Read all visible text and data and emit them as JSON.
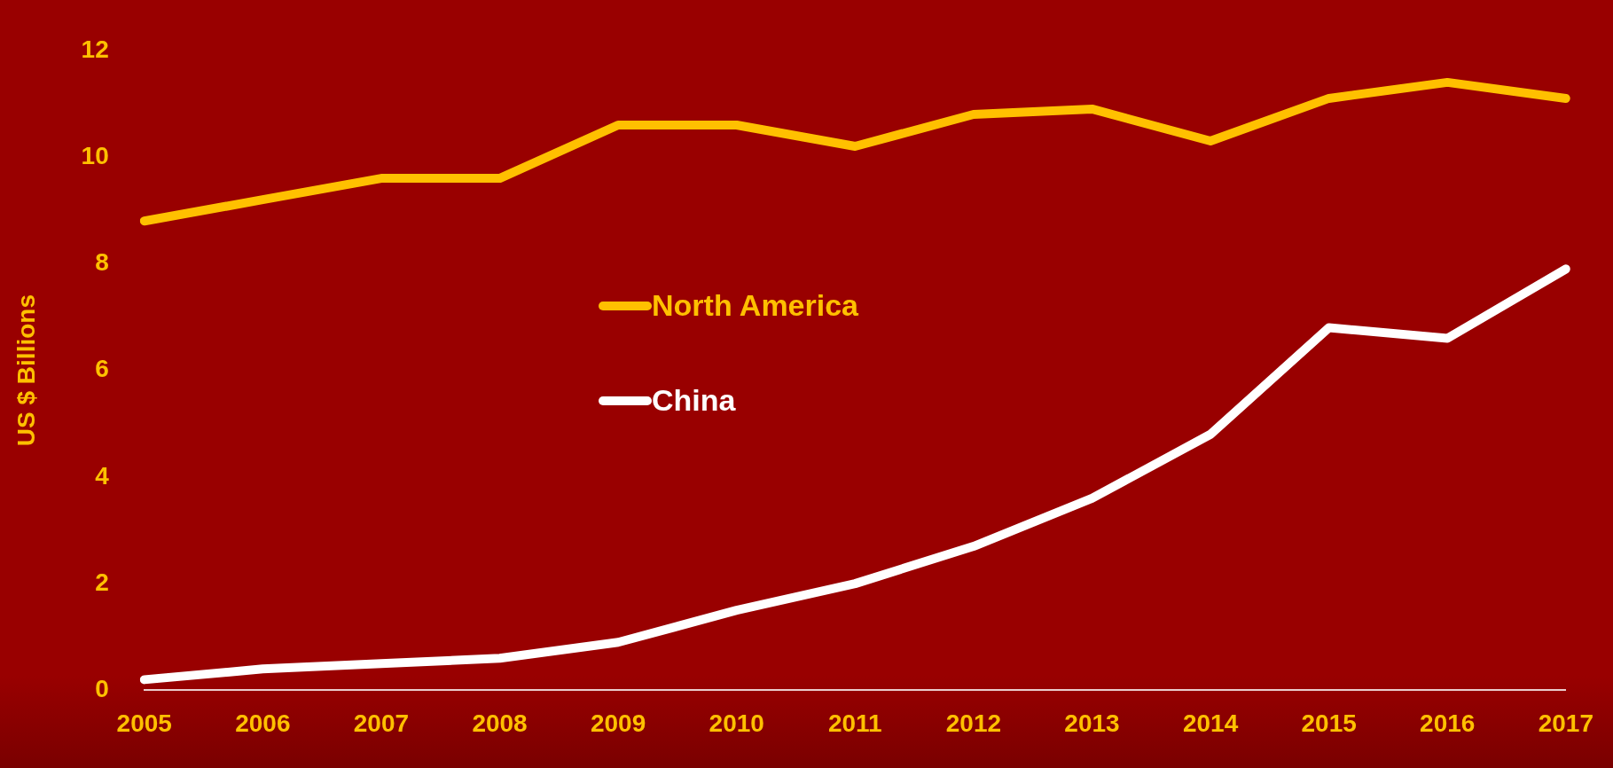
{
  "chart_data": {
    "type": "line",
    "ylabel": "US $ Billions",
    "categories": [
      "2005",
      "2006",
      "2007",
      "2008",
      "2009",
      "2010",
      "2011",
      "2012",
      "2013",
      "2014",
      "2015",
      "2016",
      "2017"
    ],
    "series": [
      {
        "name": "North America",
        "color": "#ffc000",
        "values": [
          8.8,
          9.2,
          9.6,
          9.6,
          10.6,
          10.6,
          10.2,
          10.8,
          10.9,
          10.3,
          11.1,
          11.4,
          11.1
        ]
      },
      {
        "name": "China",
        "color": "#ffffff",
        "values": [
          0.2,
          0.4,
          0.5,
          0.6,
          0.9,
          1.5,
          2.0,
          2.7,
          3.6,
          4.8,
          6.8,
          6.6,
          7.9
        ]
      }
    ],
    "ylim": [
      0,
      12
    ],
    "yticks": [
      0,
      2,
      4,
      6,
      8,
      10,
      12
    ],
    "grid": false,
    "legend": "center",
    "marker": "none",
    "line_style": "solid"
  }
}
